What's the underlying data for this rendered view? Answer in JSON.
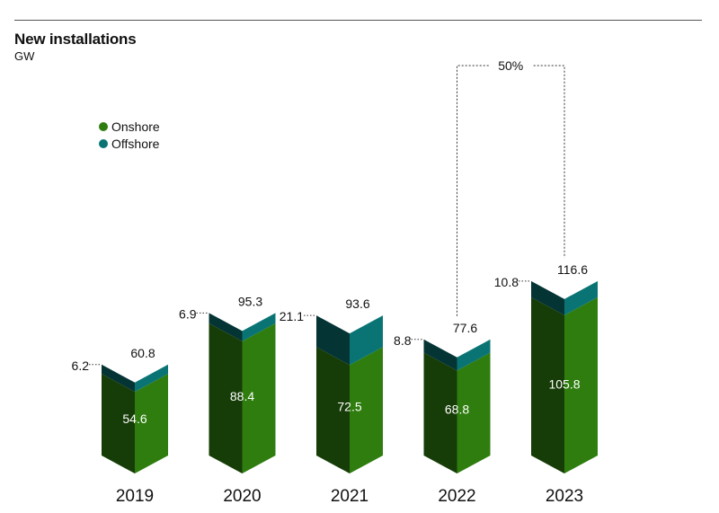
{
  "chart_data": {
    "type": "bar",
    "stacked": true,
    "title": "New installations",
    "unit": "GW",
    "categories": [
      "2019",
      "2020",
      "2021",
      "2022",
      "2023"
    ],
    "series": [
      {
        "name": "Onshore",
        "color": "#2e7d0e",
        "values": [
          54.6,
          88.4,
          72.5,
          68.8,
          105.8
        ],
        "value_labels": [
          "54.6",
          "88.4",
          "72.5",
          "68.8",
          "105.8"
        ]
      },
      {
        "name": "Offshore",
        "color": "#0a7474",
        "values": [
          6.2,
          6.9,
          21.1,
          8.8,
          10.8
        ],
        "value_labels": [
          "6.2",
          "6.9",
          "21.1",
          "8.8",
          "10.8"
        ]
      }
    ],
    "totals": [
      "60.8",
      "95.3",
      "93.6",
      "77.6",
      "116.6"
    ],
    "growth_annotation": {
      "from": "2022",
      "to": "2023",
      "label": "50%"
    },
    "legend": {
      "position": "top-left"
    },
    "grid": false,
    "colors": {
      "onshore_front": "#2e7d0e",
      "onshore_side": "#163d07",
      "offshore_front": "#0a7474",
      "offshore_side": "#053434"
    }
  }
}
